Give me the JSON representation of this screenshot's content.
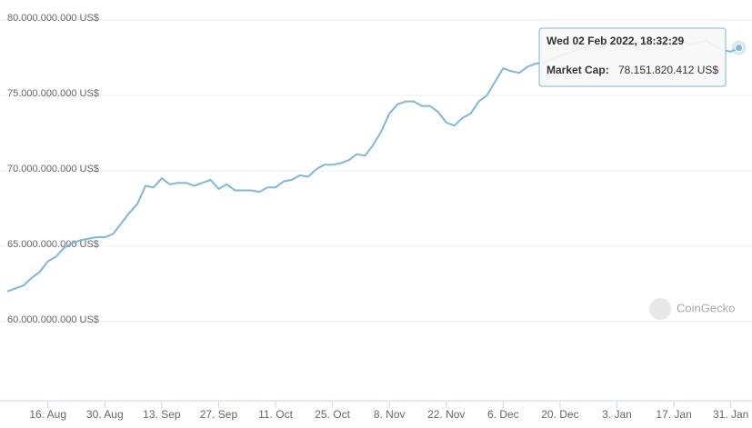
{
  "chart_data": {
    "type": "line",
    "categories": [
      null,
      null,
      null,
      null,
      null,
      "16. Aug",
      null,
      null,
      null,
      null,
      null,
      null,
      "30. Aug",
      null,
      null,
      null,
      null,
      null,
      null,
      "13. Sep",
      null,
      null,
      null,
      null,
      null,
      null,
      "27. Sep",
      null,
      null,
      null,
      null,
      null,
      null,
      "11. Oct",
      null,
      null,
      null,
      null,
      null,
      null,
      "25. Oct",
      null,
      null,
      null,
      null,
      null,
      null,
      "8. Nov",
      null,
      null,
      null,
      null,
      null,
      null,
      "22. Nov",
      null,
      null,
      null,
      null,
      null,
      null,
      "6. Dec",
      null,
      null,
      null,
      null,
      null,
      null,
      "20. Dec",
      null,
      null,
      null,
      null,
      null,
      null,
      "3. Jan",
      null,
      null,
      null,
      null,
      null,
      null,
      "17. Jan",
      null,
      null,
      null,
      null,
      null,
      null,
      "31. Jan",
      null
    ],
    "series": [
      {
        "name": "Market Cap",
        "color": "#7fb6da",
        "values": [
          62000000000,
          62200000000,
          62400000000,
          62900000000,
          63300000000,
          64000000000,
          64300000000,
          64900000000,
          65200000000,
          65400000000,
          65500000000,
          65600000000,
          65600000000,
          65800000000,
          66500000000,
          67200000000,
          67800000000,
          69000000000,
          68900000000,
          69500000000,
          69100000000,
          69200000000,
          69200000000,
          69000000000,
          69200000000,
          69400000000,
          68800000000,
          69100000000,
          68700000000,
          68700000000,
          68700000000,
          68600000000,
          68900000000,
          68900000000,
          69300000000,
          69400000000,
          69700000000,
          69600000000,
          70100000000,
          70400000000,
          70400000000,
          70500000000,
          70700000000,
          71100000000,
          71000000000,
          71700000000,
          72600000000,
          73800000000,
          74400000000,
          74600000000,
          74600000000,
          74300000000,
          74300000000,
          73900000000,
          73200000000,
          73000000000,
          73500000000,
          73800000000,
          74600000000,
          75000000000,
          75900000000,
          76800000000,
          76600000000,
          76500000000,
          76900000000,
          77100000000,
          77200000000,
          77400000000,
          77600000000,
          77800000000,
          78000000000,
          78200000000,
          78300000000,
          78200000000,
          78400000000,
          78500000000,
          78300000000,
          78400000000,
          78500000000,
          78600000000,
          78400000000,
          78300000000,
          78500000000,
          78600000000,
          78400000000,
          78500000000,
          78600000000,
          78300000000,
          78000000000,
          77900000000,
          78151820412
        ]
      }
    ],
    "ylim": [
      54750000000,
      80000000000
    ],
    "yticks": [
      {
        "value": 60000000000,
        "label": "60.000.000.000 US$"
      },
      {
        "value": 65000000000,
        "label": "65.000.000.000 US$"
      },
      {
        "value": 70000000000,
        "label": "70.000.000.000 US$"
      },
      {
        "value": 75000000000,
        "label": "75.000.000.000 US$"
      },
      {
        "value": 80000000000,
        "label": "80.000.000.000 US$"
      }
    ],
    "grid": true,
    "tooltip": {
      "date": "Wed 02 Feb 2022, 18:32:29",
      "label": "Market Cap:",
      "value": "78.151.820.412 US$"
    },
    "watermark": "CoinGecko"
  }
}
